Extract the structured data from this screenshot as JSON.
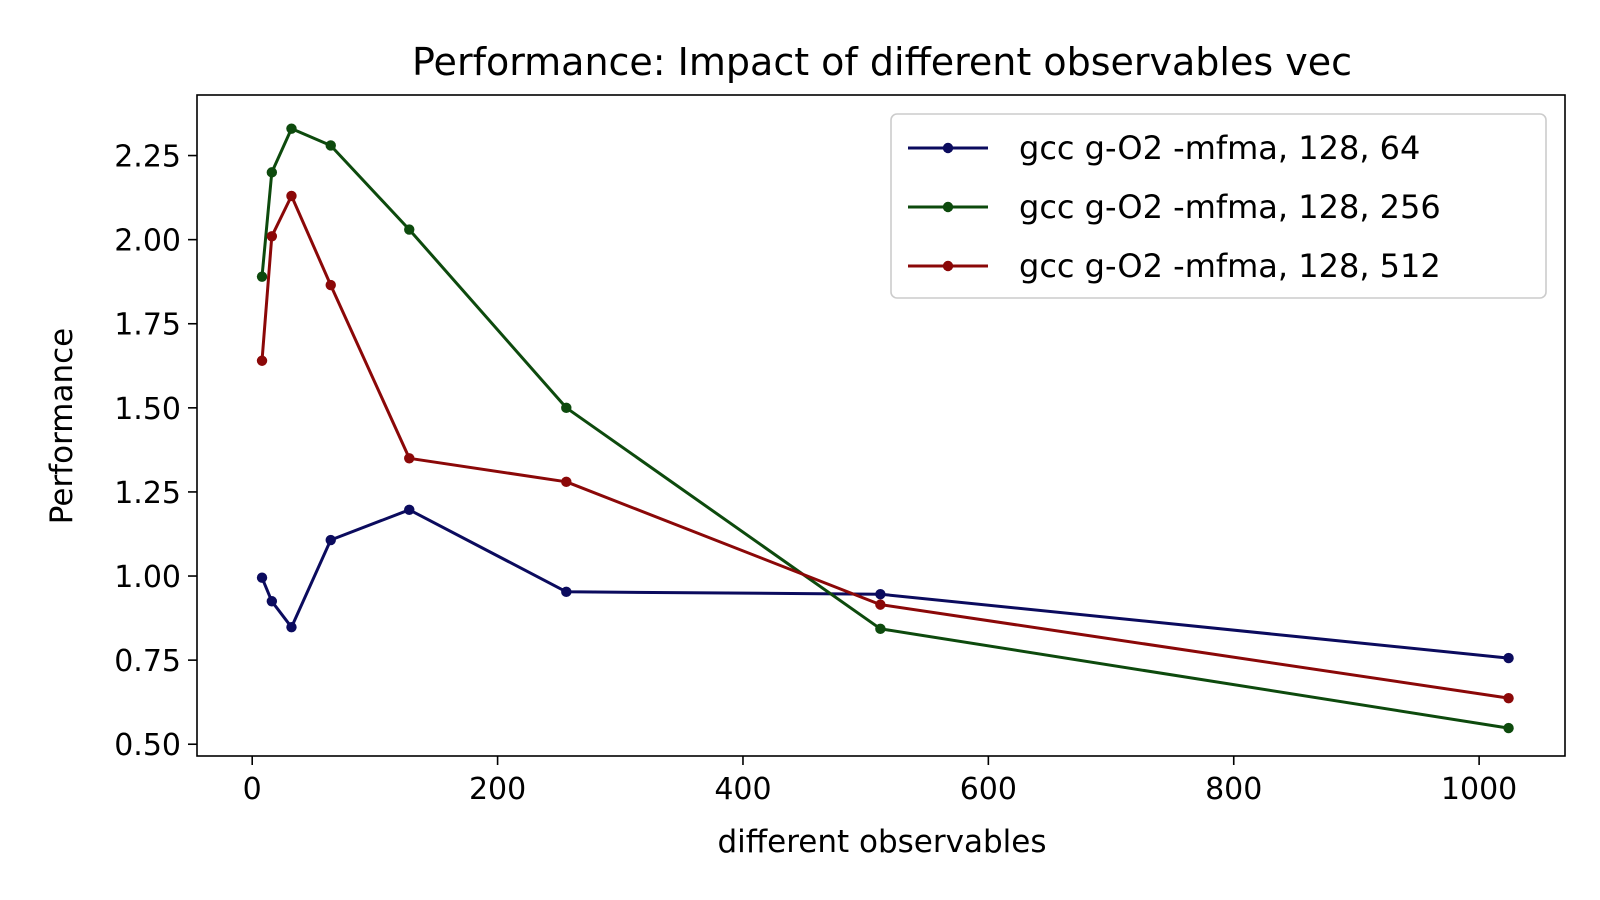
{
  "chart_data": {
    "type": "line",
    "title": "Performance: Impact of different observables vec",
    "xlabel": "different observables",
    "ylabel": "Performance",
    "xlim": [
      -45,
      1070
    ],
    "ylim": [
      0.465,
      2.43
    ],
    "xticks": [
      0,
      200,
      400,
      600,
      800,
      1000
    ],
    "xtick_labels": [
      "0",
      "200",
      "400",
      "600",
      "800",
      "1000"
    ],
    "yticks": [
      0.5,
      0.75,
      1.0,
      1.25,
      1.5,
      1.75,
      2.0,
      2.25
    ],
    "ytick_labels": [
      "0.50",
      "0.75",
      "1.00",
      "1.25",
      "1.50",
      "1.75",
      "2.00",
      "2.25"
    ],
    "grid": false,
    "legend_position": "top-right",
    "series": [
      {
        "name": "gcc g-O2 -mfma, 128, 64",
        "color": "#0b0b5e",
        "x": [
          8,
          16,
          32,
          64,
          128,
          256,
          512,
          1024
        ],
        "y": [
          0.995,
          0.925,
          0.848,
          1.107,
          1.197,
          0.953,
          0.946,
          0.756
        ]
      },
      {
        "name": "gcc g-O2 -mfma, 128, 256",
        "color": "#0d4a0d",
        "x": [
          8,
          16,
          32,
          64,
          128,
          256,
          512,
          1024
        ],
        "y": [
          1.89,
          2.2,
          2.33,
          2.28,
          2.03,
          1.5,
          0.843,
          0.548
        ]
      },
      {
        "name": "gcc g-O2 -mfma, 128, 512",
        "color": "#8b0808",
        "x": [
          8,
          16,
          32,
          64,
          128,
          256,
          512,
          1024
        ],
        "y": [
          1.64,
          2.01,
          2.13,
          1.865,
          1.35,
          1.28,
          0.915,
          0.637
        ]
      }
    ]
  }
}
